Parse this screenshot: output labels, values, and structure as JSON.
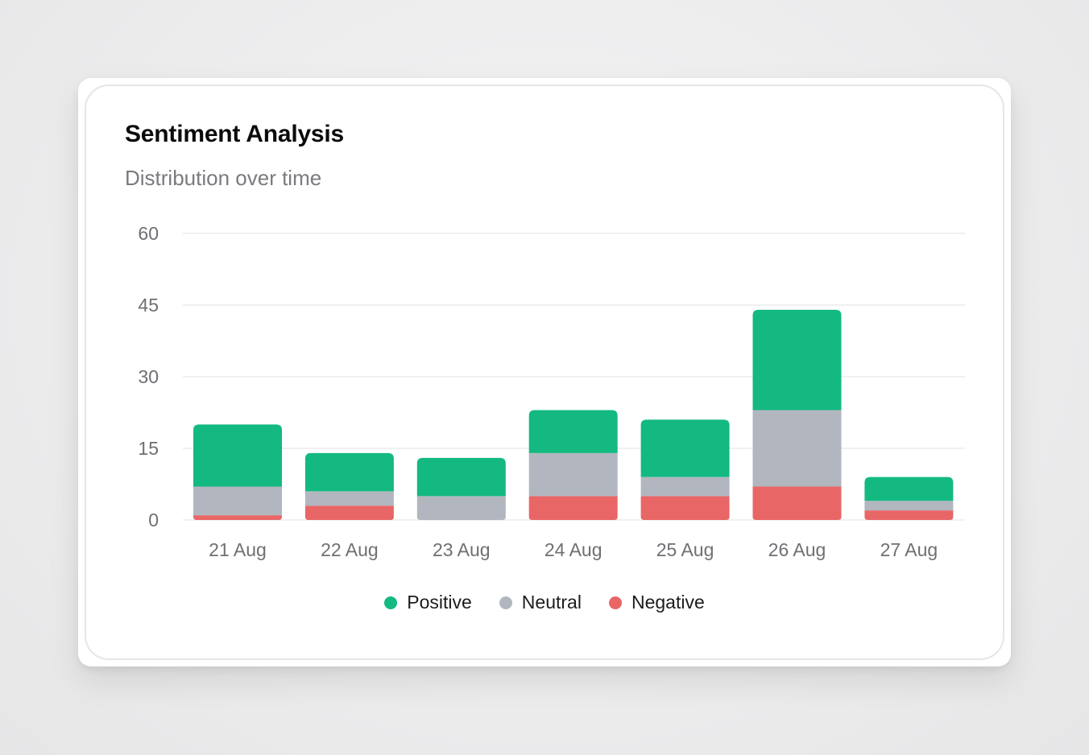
{
  "card": {
    "title": "Sentiment Analysis",
    "subtitle": "Distribution over time"
  },
  "colors": {
    "positive": "#13b981",
    "neutral": "#b2b6bf",
    "negative": "#e96667",
    "grid": "#ececee",
    "tick": "#6f6f74"
  },
  "chart_data": {
    "type": "bar",
    "stacked": true,
    "title": "Sentiment Analysis",
    "subtitle": "Distribution over time",
    "categories": [
      "21 Aug",
      "22 Aug",
      "23 Aug",
      "24 Aug",
      "25 Aug",
      "26 Aug",
      "27 Aug"
    ],
    "series": [
      {
        "name": "Negative",
        "color": "#e96667",
        "values": [
          1,
          3,
          0,
          5,
          5,
          7,
          2
        ]
      },
      {
        "name": "Neutral",
        "color": "#b2b6bf",
        "values": [
          6,
          3,
          5,
          9,
          4,
          16,
          2
        ]
      },
      {
        "name": "Positive",
        "color": "#13b981",
        "values": [
          13,
          8,
          8,
          9,
          12,
          21,
          5
        ]
      }
    ],
    "yticks": [
      0,
      15,
      30,
      45,
      60
    ],
    "ylim": [
      0,
      60
    ],
    "grid": true,
    "legend": "bottom-center",
    "legend_order": [
      "Positive",
      "Neutral",
      "Negative"
    ]
  }
}
